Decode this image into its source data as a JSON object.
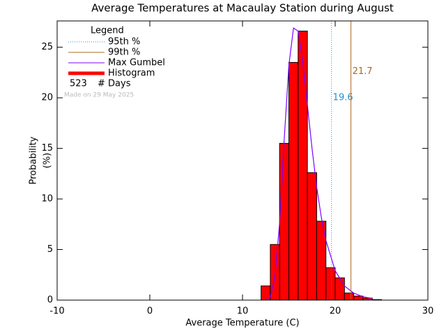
{
  "chart_data": {
    "type": "histogram",
    "title": "Average Temperatures at Macaulay Station during August",
    "xlabel": "Average Temperature (C)",
    "ylabel": "Probability",
    "ylabel_unit": "(%)",
    "bins": [
      12,
      13,
      14,
      15,
      16,
      17,
      18,
      19,
      20,
      21,
      22,
      23,
      24,
      25
    ],
    "values": [
      1.4,
      5.5,
      15.5,
      23.5,
      26.6,
      12.6,
      7.8,
      3.2,
      2.2,
      0.7,
      0.4,
      0.2,
      0.05
    ],
    "color": "#ff0000",
    "series_name": "Histogram",
    "gumbel": {
      "name": "Max Gumbel",
      "color": "#7f00ff",
      "x": [
        12.5,
        13,
        13.5,
        14,
        14.5,
        15,
        15.5,
        16,
        16.5,
        17,
        17.5,
        18,
        18.5,
        19,
        20,
        21,
        22,
        23,
        24
      ],
      "values": [
        0.02,
        0.34,
        2.3,
        7.6,
        15.9,
        23.2,
        26.9,
        26.6,
        23.5,
        19.3,
        15.0,
        11.2,
        8.2,
        5.9,
        2.9,
        1.4,
        0.69,
        0.33,
        0.16
      ]
    },
    "percentiles": [
      {
        "name": "95th %",
        "value": 19.6,
        "color": "#1f8fd0",
        "style": "dotted"
      },
      {
        "name": "99th %",
        "value": 21.7,
        "color": "#b06820",
        "style": "solid"
      }
    ],
    "legend_title": "Legend",
    "days": 523,
    "days_label": "# Days",
    "watermark": "Made on 29 May 2025",
    "xlim": [
      -10,
      30
    ],
    "xticks": [
      -10,
      0,
      10,
      20,
      30
    ],
    "ylim": [
      0,
      27.6
    ],
    "yticks": [
      0,
      5,
      10,
      15,
      20,
      25
    ]
  }
}
